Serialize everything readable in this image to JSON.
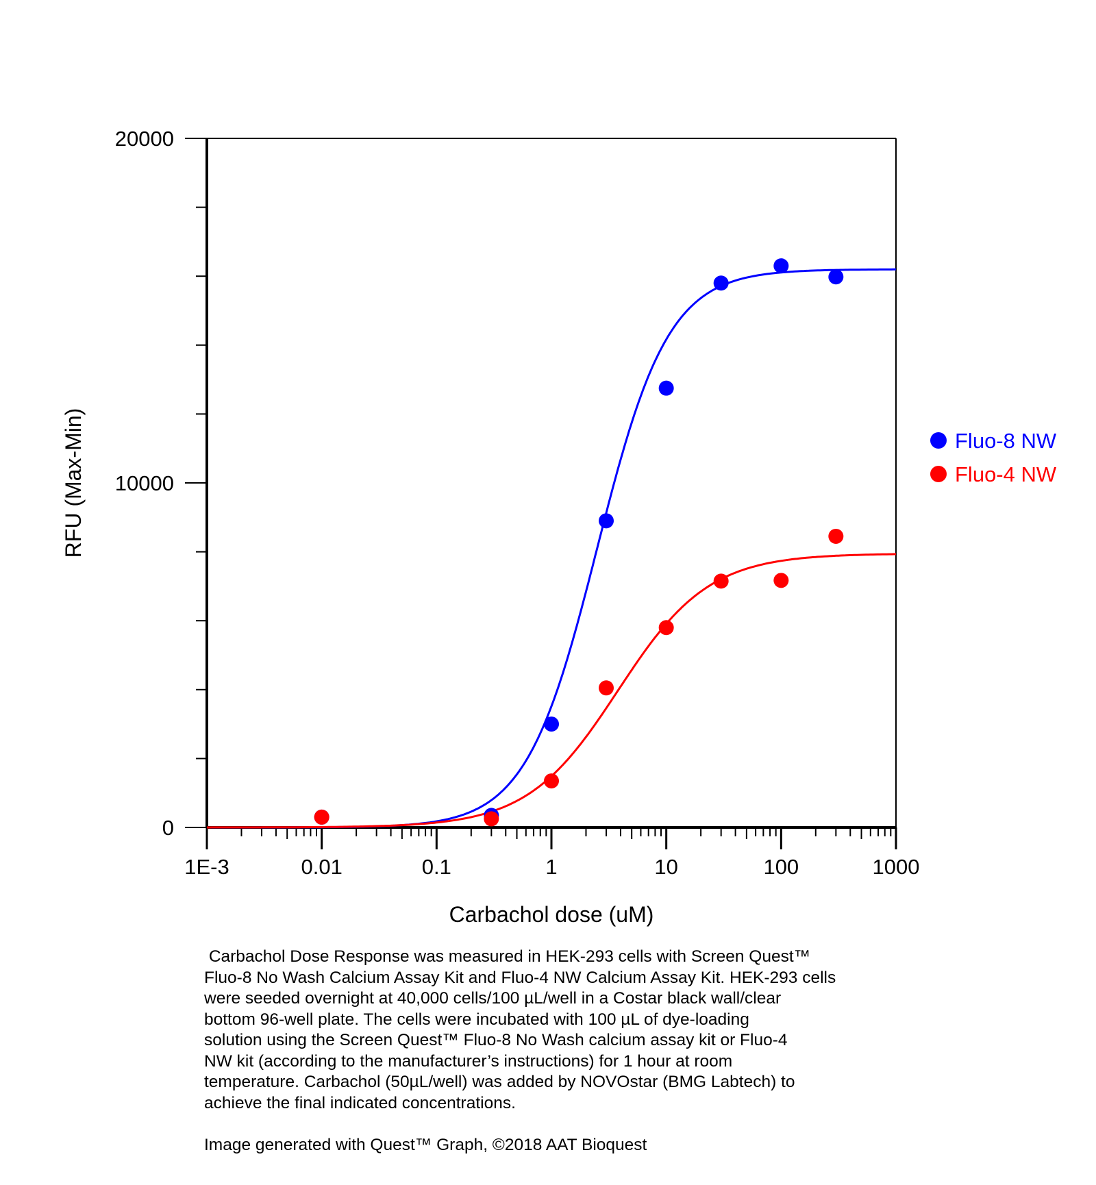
{
  "chart_data": {
    "type": "scatter",
    "xlabel": "Carbachol dose (uM)",
    "ylabel": "RFU (Max-Min)",
    "x_scale": "log",
    "xlim": [
      0.001,
      1000
    ],
    "ylim": [
      0,
      20000
    ],
    "x_tick_labels": [
      "1E-3",
      "0.01",
      "0.1",
      "1",
      "10",
      "100",
      "1000"
    ],
    "x_tick_values": [
      0.001,
      0.01,
      0.1,
      1,
      10,
      100,
      1000
    ],
    "y_tick_labels": [
      "0",
      "10000",
      "20000"
    ],
    "y_tick_values": [
      0,
      10000,
      20000
    ],
    "y_minor_step": 2000,
    "grid": false,
    "legend_position": "right",
    "series": [
      {
        "name": "Fluo-8 NW",
        "color": "#0000ff",
        "x": [
          0.01,
          0.3,
          1,
          3,
          10,
          30,
          100,
          300
        ],
        "y": [
          300,
          350,
          3000,
          8900,
          12750,
          15800,
          16300,
          15980
        ],
        "fit": {
          "model": "4PL",
          "bottom": 0,
          "top": 16200,
          "ec50": 2.5,
          "hill": 1.4
        }
      },
      {
        "name": "Fluo-4 NW",
        "color": "#ff0000",
        "x": [
          0.01,
          0.3,
          1,
          3,
          10,
          30,
          100,
          300
        ],
        "y": [
          300,
          250,
          1350,
          4050,
          5800,
          7150,
          7170,
          8450
        ],
        "fit": {
          "model": "4PL",
          "bottom": 0,
          "top": 7950,
          "ec50": 3.8,
          "hill": 1.1
        }
      }
    ]
  },
  "caption": " Carbachol Dose Response was measured in HEK-293 cells with Screen Quest™\nFluo-8 No Wash Calcium Assay Kit and Fluo-4 NW Calcium Assay Kit. HEK-293 cells\nwere seeded overnight at 40,000 cells/100 µL/well in a Costar black wall/clear\nbottom 96-well plate. The cells were incubated with 100 µL of dye-loading\nsolution using the Screen Quest™ Fluo-8 No Wash calcium assay kit or Fluo-4\nNW kit (according to the manufacturer’s instructions) for 1 hour at room\ntemperature. Carbachol (50µL/well) was added by NOVOstar (BMG Labtech) to\nachieve the final indicated concentrations.",
  "credit": "Image generated with Quest™ Graph, ©2018 AAT Bioquest"
}
